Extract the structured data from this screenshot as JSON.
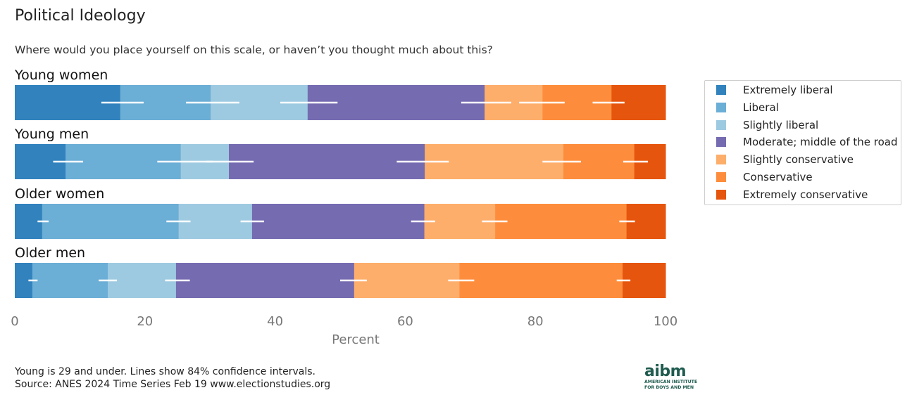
{
  "title": "Political Ideology",
  "subtitle": "Where would you place yourself on this scale, or haven’t you thought much about this?",
  "chart_data": {
    "type": "stacked-bar-horizontal",
    "xlabel": "Percent",
    "xlim": [
      0,
      100
    ],
    "xticks": [
      "0",
      "20",
      "40",
      "60",
      "80",
      "100"
    ],
    "legend_position": "right",
    "categories": [
      "Extremely liberal",
      "Liberal",
      "Slightly liberal",
      "Moderate; middle of the road",
      "Slightly conservative",
      "Conservative",
      "Extremely conservative"
    ],
    "colors": [
      "#3182bd",
      "#6baed6",
      "#9ecae1",
      "#756bb1",
      "#fdae6b",
      "#fd8d3c",
      "#e6550d"
    ],
    "groups": [
      {
        "name": "Young women",
        "values": [
          16.2,
          13.9,
          14.9,
          27.2,
          8.9,
          10.6,
          8.3
        ],
        "ci": [
          [
            13.3,
            19.8
          ],
          [
            26.3,
            34.5
          ],
          [
            40.8,
            49.6
          ],
          [
            68.6,
            76.3
          ],
          [
            77.5,
            84.5
          ],
          [
            88.8,
            93.7
          ]
        ]
      },
      {
        "name": "Young men",
        "values": [
          7.8,
          17.7,
          7.4,
          30.1,
          21.3,
          10.9,
          4.8
        ],
        "ci": [
          [
            5.9,
            10.5
          ],
          [
            21.9,
            30.5
          ],
          [
            29.4,
            36.7
          ],
          [
            58.7,
            66.7
          ],
          [
            81.1,
            87.0
          ],
          [
            93.5,
            97.3
          ]
        ]
      },
      {
        "name": "Older women",
        "values": [
          4.2,
          21.0,
          11.3,
          26.5,
          10.9,
          20.2,
          6.0
        ],
        "ci": [
          [
            3.5,
            5.2
          ],
          [
            23.3,
            27.0
          ],
          [
            34.7,
            38.3
          ],
          [
            60.9,
            64.6
          ],
          [
            71.8,
            75.7
          ],
          [
            92.9,
            95.3
          ]
        ]
      },
      {
        "name": "Older men",
        "values": [
          2.7,
          11.6,
          10.5,
          27.4,
          16.2,
          25.1,
          6.6
        ],
        "ci": [
          [
            2.1,
            3.5
          ],
          [
            12.9,
            15.7
          ],
          [
            23.1,
            26.9
          ],
          [
            50.0,
            54.1
          ],
          [
            66.6,
            70.6
          ],
          [
            92.5,
            94.6
          ]
        ]
      }
    ]
  },
  "footnote_line1": "Young is 29 and under. Lines show 84% confidence intervals.",
  "footnote_line2": "Source: ANES 2024 Time Series Feb 19 www.electionstudies.org",
  "logo": {
    "main": "aibm",
    "sub1": "AMERICAN INSTITUTE",
    "sub2": "FOR BOYS AND MEN"
  }
}
